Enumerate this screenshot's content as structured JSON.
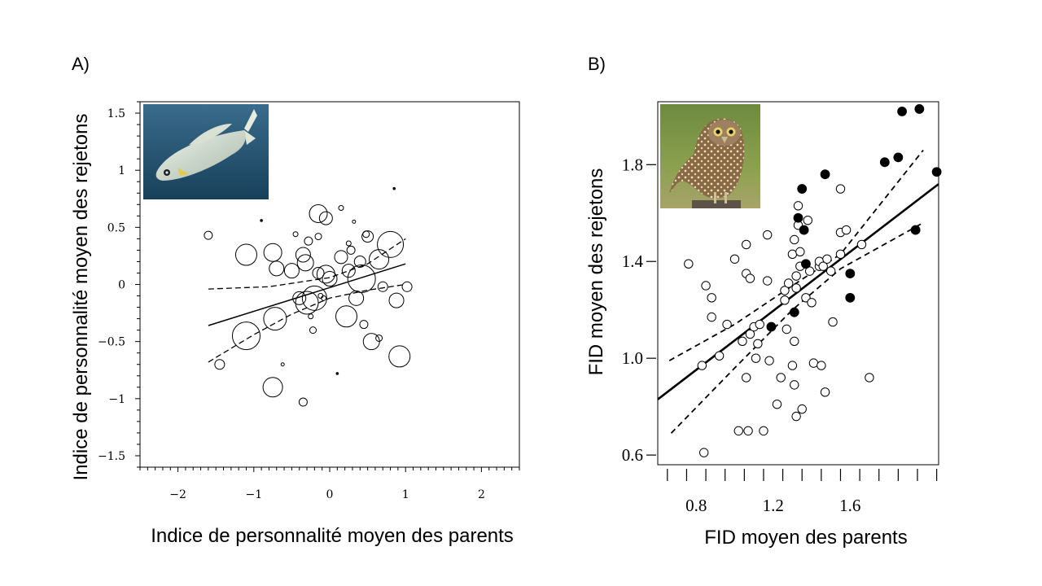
{
  "panels": {
    "a": {
      "label": "A)"
    },
    "b": {
      "label": "B)"
    }
  },
  "chart_data": [
    {
      "type": "scatter",
      "panel": "A)",
      "xlabel": "Indice de personnalité moyen des parents",
      "ylabel": "Indice de personnalité moyen des rejetons",
      "xlim": [
        -2.5,
        2.5
      ],
      "ylim": [
        -1.6,
        1.6
      ],
      "xticks": [
        -2,
        -1,
        0,
        1,
        2
      ],
      "xtick_labels": [
        "−2",
        "−1",
        "0",
        "1",
        "2"
      ],
      "yticks": [
        1.5,
        1,
        0.5,
        0,
        -0.5,
        -1,
        -1.5
      ],
      "ytick_labels": [
        "1.5",
        "1",
        "0.5",
        "0",
        "−0.5",
        "−1",
        "−1.5"
      ],
      "grid": false,
      "marker": "open circle, size proportional to weight",
      "inset": "photo-fish",
      "points": [
        {
          "x": -1.6,
          "y": 0.43,
          "s": 5
        },
        {
          "x": -1.45,
          "y": -0.7,
          "s": 6
        },
        {
          "x": -1.1,
          "y": 0.26,
          "s": 13
        },
        {
          "x": -1.1,
          "y": -0.45,
          "s": 17
        },
        {
          "x": -0.9,
          "y": 0.56,
          "s": 1
        },
        {
          "x": -0.75,
          "y": 0.28,
          "s": 11
        },
        {
          "x": -0.7,
          "y": 0.14,
          "s": 9
        },
        {
          "x": -0.72,
          "y": -0.3,
          "s": 14
        },
        {
          "x": -0.62,
          "y": -0.7,
          "s": 2
        },
        {
          "x": -0.75,
          "y": -0.9,
          "s": 12
        },
        {
          "x": -0.45,
          "y": 0.44,
          "s": 3
        },
        {
          "x": -0.35,
          "y": 0.26,
          "s": 9
        },
        {
          "x": -0.32,
          "y": 0.19,
          "s": 10
        },
        {
          "x": -0.28,
          "y": 0.38,
          "s": 5
        },
        {
          "x": -0.4,
          "y": -0.12,
          "s": 8
        },
        {
          "x": -0.3,
          "y": -0.16,
          "s": 14
        },
        {
          "x": -0.2,
          "y": -0.12,
          "s": 15
        },
        {
          "x": -0.25,
          "y": -0.28,
          "s": 3
        },
        {
          "x": -0.22,
          "y": -0.4,
          "s": 4
        },
        {
          "x": -0.35,
          "y": -1.03,
          "s": 5
        },
        {
          "x": -0.15,
          "y": 0.62,
          "s": 11
        },
        {
          "x": -0.05,
          "y": 0.58,
          "s": 8
        },
        {
          "x": -0.15,
          "y": 0.1,
          "s": 7
        },
        {
          "x": -0.05,
          "y": 0.09,
          "s": 11
        },
        {
          "x": 0.0,
          "y": 0.05,
          "s": 9
        },
        {
          "x": -0.08,
          "y": -0.12,
          "s": 3
        },
        {
          "x": -0.15,
          "y": 0.42,
          "s": 4
        },
        {
          "x": 0.15,
          "y": 0.67,
          "s": 3
        },
        {
          "x": 0.25,
          "y": 0.36,
          "s": 3
        },
        {
          "x": 0.28,
          "y": 0.3,
          "s": 5
        },
        {
          "x": 0.15,
          "y": 0.24,
          "s": 8
        },
        {
          "x": 0.25,
          "y": 0.12,
          "s": 8
        },
        {
          "x": 0.4,
          "y": 0.2,
          "s": 7
        },
        {
          "x": 0.42,
          "y": 0.05,
          "s": 17
        },
        {
          "x": 0.35,
          "y": -0.12,
          "s": 9
        },
        {
          "x": 0.22,
          "y": -0.28,
          "s": 13
        },
        {
          "x": 0.5,
          "y": 0.42,
          "s": 7
        },
        {
          "x": 0.48,
          "y": 0.44,
          "s": 4
        },
        {
          "x": 0.45,
          "y": -0.35,
          "s": 5
        },
        {
          "x": 0.55,
          "y": -0.5,
          "s": 10
        },
        {
          "x": 0.65,
          "y": -0.47,
          "s": 4
        },
        {
          "x": 0.7,
          "y": -0.02,
          "s": 6
        },
        {
          "x": 0.65,
          "y": 0.22,
          "s": 12
        },
        {
          "x": 0.8,
          "y": 0.35,
          "s": 16
        },
        {
          "x": 0.85,
          "y": 0.84,
          "s": 1
        },
        {
          "x": 0.88,
          "y": -0.14,
          "s": 9
        },
        {
          "x": 0.92,
          "y": -0.63,
          "s": 13
        },
        {
          "x": 1.02,
          "y": -0.02,
          "s": 6
        },
        {
          "x": 0.1,
          "y": -0.78,
          "s": 1
        },
        {
          "x": -0.12,
          "y": -0.1,
          "s": 3
        },
        {
          "x": -0.5,
          "y": 0.12,
          "s": 9
        },
        {
          "x": 0.32,
          "y": 0.55,
          "s": 2
        }
      ],
      "regression": {
        "x": [
          -1.6,
          1.0
        ],
        "y": [
          -0.36,
          0.18
        ]
      },
      "ci_upper": {
        "x": [
          -1.6,
          -0.8,
          0.0,
          0.5,
          1.0
        ],
        "y": [
          -0.04,
          -0.02,
          0.06,
          0.18,
          0.4
        ]
      },
      "ci_lower": {
        "x": [
          -1.6,
          -1.0,
          -0.5,
          0.0,
          0.5,
          1.0
        ],
        "y": [
          -0.68,
          -0.44,
          -0.26,
          -0.12,
          -0.05,
          0.0
        ]
      }
    },
    {
      "type": "scatter",
      "panel": "B)",
      "xlabel": "FID moyen des parents",
      "ylabel": "FID moyen des rejetons",
      "xlim": [
        0.6,
        2.06
      ],
      "ylim": [
        0.56,
        2.06
      ],
      "xticks": [
        0.8,
        1.2,
        1.6
      ],
      "xtick_labels": [
        "0.8",
        "1.2",
        "1.6"
      ],
      "yticks": [
        0.6,
        1.0,
        1.4,
        1.8
      ],
      "ytick_labels": [
        "0.6",
        "1.0",
        "1.4",
        "1.8"
      ],
      "grid": false,
      "inset": "photo-owl",
      "open_points": [
        [
          0.76,
          1.39
        ],
        [
          0.83,
          0.97
        ],
        [
          0.84,
          0.61
        ],
        [
          0.85,
          1.3
        ],
        [
          0.88,
          1.25
        ],
        [
          0.88,
          1.17
        ],
        [
          0.92,
          1.01
        ],
        [
          0.96,
          1.14
        ],
        [
          1.0,
          1.41
        ],
        [
          1.02,
          0.7
        ],
        [
          1.04,
          1.07
        ],
        [
          1.06,
          1.47
        ],
        [
          1.06,
          1.35
        ],
        [
          1.06,
          0.92
        ],
        [
          1.07,
          0.7
        ],
        [
          1.08,
          1.33
        ],
        [
          1.08,
          1.1
        ],
        [
          1.1,
          1.13
        ],
        [
          1.11,
          1.0
        ],
        [
          1.12,
          1.06
        ],
        [
          1.13,
          1.14
        ],
        [
          1.15,
          0.7
        ],
        [
          1.17,
          1.51
        ],
        [
          1.17,
          1.32
        ],
        [
          1.18,
          0.99
        ],
        [
          1.22,
          0.81
        ],
        [
          1.24,
          0.92
        ],
        [
          1.26,
          1.28
        ],
        [
          1.26,
          1.24
        ],
        [
          1.27,
          1.12
        ],
        [
          1.28,
          1.31
        ],
        [
          1.3,
          0.97
        ],
        [
          1.3,
          1.43
        ],
        [
          1.31,
          1.49
        ],
        [
          1.31,
          1.07
        ],
        [
          1.31,
          0.89
        ],
        [
          1.32,
          0.76
        ],
        [
          1.32,
          1.29
        ],
        [
          1.32,
          1.34
        ],
        [
          1.33,
          1.63
        ],
        [
          1.33,
          1.55
        ],
        [
          1.34,
          1.44
        ],
        [
          1.34,
          1.38
        ],
        [
          1.35,
          0.79
        ],
        [
          1.37,
          1.25
        ],
        [
          1.38,
          1.57
        ],
        [
          1.39,
          1.36
        ],
        [
          1.4,
          1.23
        ],
        [
          1.41,
          0.98
        ],
        [
          1.44,
          1.38
        ],
        [
          1.44,
          1.4
        ],
        [
          1.45,
          0.97
        ],
        [
          1.46,
          1.38
        ],
        [
          1.47,
          0.86
        ],
        [
          1.48,
          1.41
        ],
        [
          1.5,
          1.36
        ],
        [
          1.51,
          1.15
        ],
        [
          1.55,
          1.43
        ],
        [
          1.55,
          1.7
        ],
        [
          1.55,
          1.52
        ],
        [
          1.58,
          1.53
        ],
        [
          1.66,
          1.47
        ],
        [
          1.7,
          0.92
        ]
      ],
      "filled_points": [
        [
          1.19,
          1.13
        ],
        [
          1.31,
          1.19
        ],
        [
          1.33,
          1.58
        ],
        [
          1.35,
          1.7
        ],
        [
          1.36,
          1.53
        ],
        [
          1.37,
          1.39
        ],
        [
          1.47,
          1.76
        ],
        [
          1.6,
          1.35
        ],
        [
          1.6,
          1.25
        ],
        [
          1.78,
          1.81
        ],
        [
          1.85,
          1.83
        ],
        [
          1.87,
          2.02
        ],
        [
          1.94,
          1.53
        ],
        [
          1.96,
          2.03
        ],
        [
          2.05,
          1.77
        ]
      ],
      "regression": {
        "x": [
          0.6,
          2.06
        ],
        "y": [
          0.83,
          1.72
        ]
      },
      "ci_upper": {
        "x": [
          0.66,
          1.0,
          1.3,
          1.55,
          1.98
        ],
        "y": [
          0.99,
          1.14,
          1.3,
          1.43,
          1.86
        ]
      },
      "ci_lower": {
        "x": [
          0.67,
          1.0,
          1.3,
          1.55,
          1.98
        ],
        "y": [
          0.69,
          0.96,
          1.2,
          1.37,
          1.56
        ]
      }
    }
  ]
}
